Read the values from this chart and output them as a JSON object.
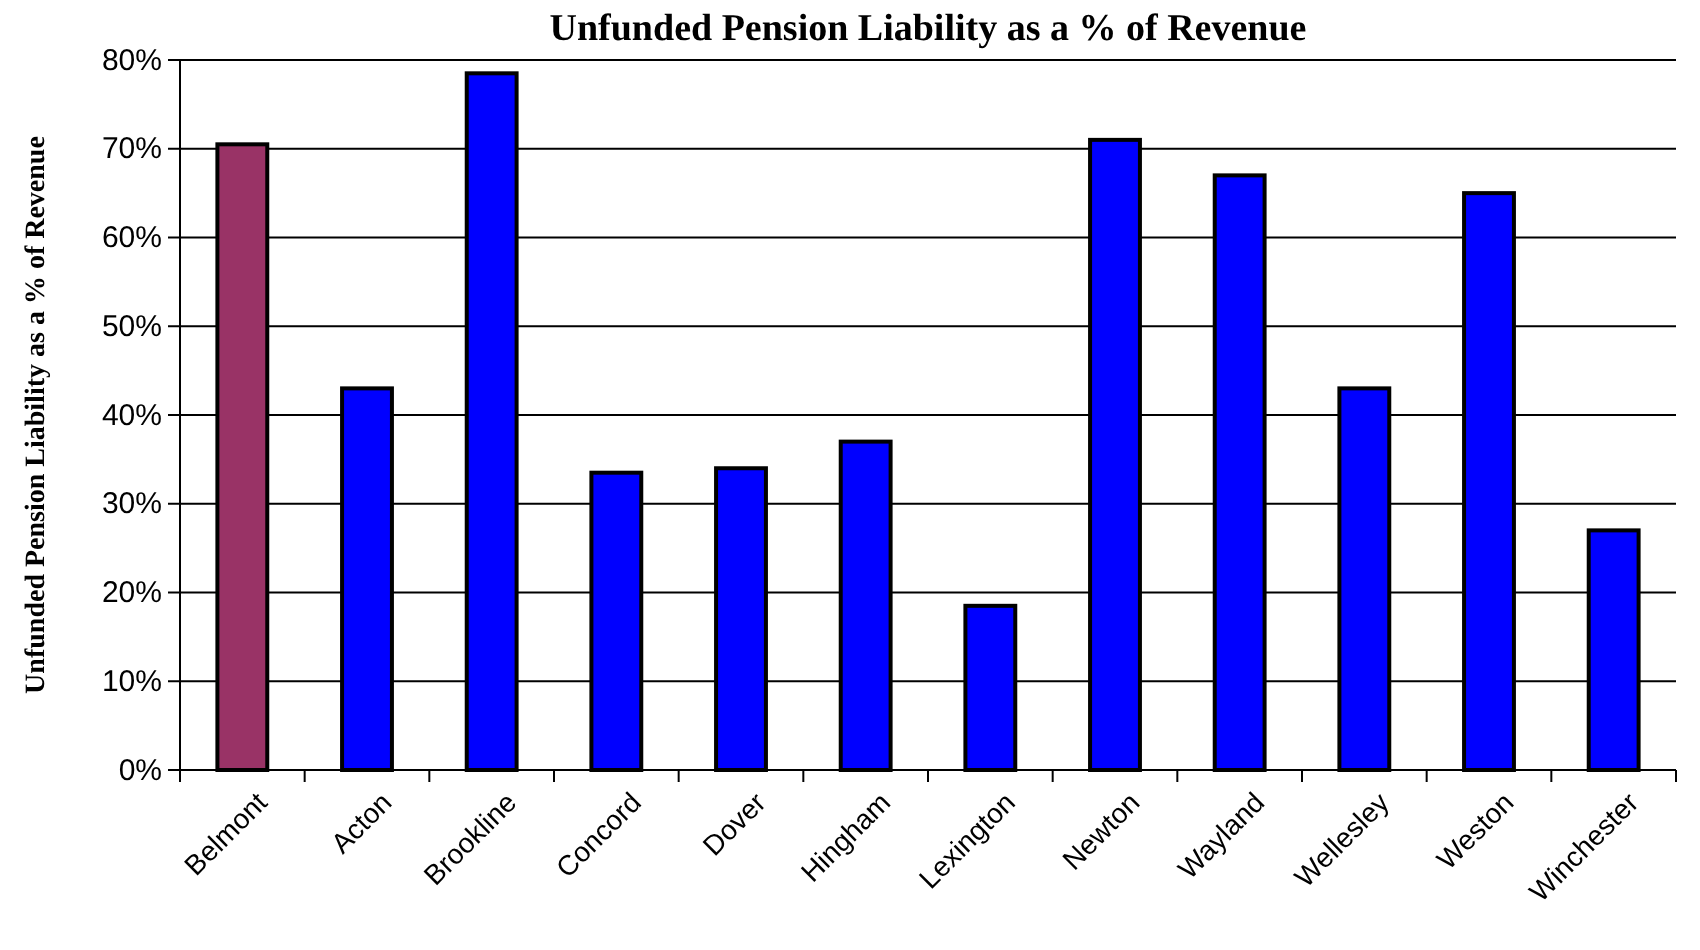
{
  "chart_data": {
    "type": "bar",
    "title": "Unfunded Pension Liability as a % of Revenue",
    "ylabel": "Unfunded Pension Liability as a % of Revenue",
    "categories": [
      "Belmont",
      "Acton",
      "Brookline",
      "Concord",
      "Dover",
      "Hingham",
      "Lexington",
      "Newton",
      "Wayland",
      "Wellesley",
      "Weston",
      "Winchester"
    ],
    "values": [
      70.5,
      43,
      78.5,
      33.5,
      34,
      37,
      18.5,
      71,
      67,
      43,
      65,
      27
    ],
    "colors": [
      "#993366",
      "#0000ff",
      "#0000ff",
      "#0000ff",
      "#0000ff",
      "#0000ff",
      "#0000ff",
      "#0000ff",
      "#0000ff",
      "#0000ff",
      "#0000ff",
      "#0000ff"
    ],
    "ylim": [
      0,
      80
    ],
    "yticks": [
      {
        "value": 0,
        "label": "0%"
      },
      {
        "value": 10,
        "label": "10%"
      },
      {
        "value": 20,
        "label": "20%"
      },
      {
        "value": 30,
        "label": "30%"
      },
      {
        "value": 40,
        "label": "40%"
      },
      {
        "value": 50,
        "label": "50%"
      },
      {
        "value": 60,
        "label": "60%"
      },
      {
        "value": 70,
        "label": "70%"
      },
      {
        "value": 80,
        "label": "80%"
      }
    ],
    "grid": "y"
  }
}
